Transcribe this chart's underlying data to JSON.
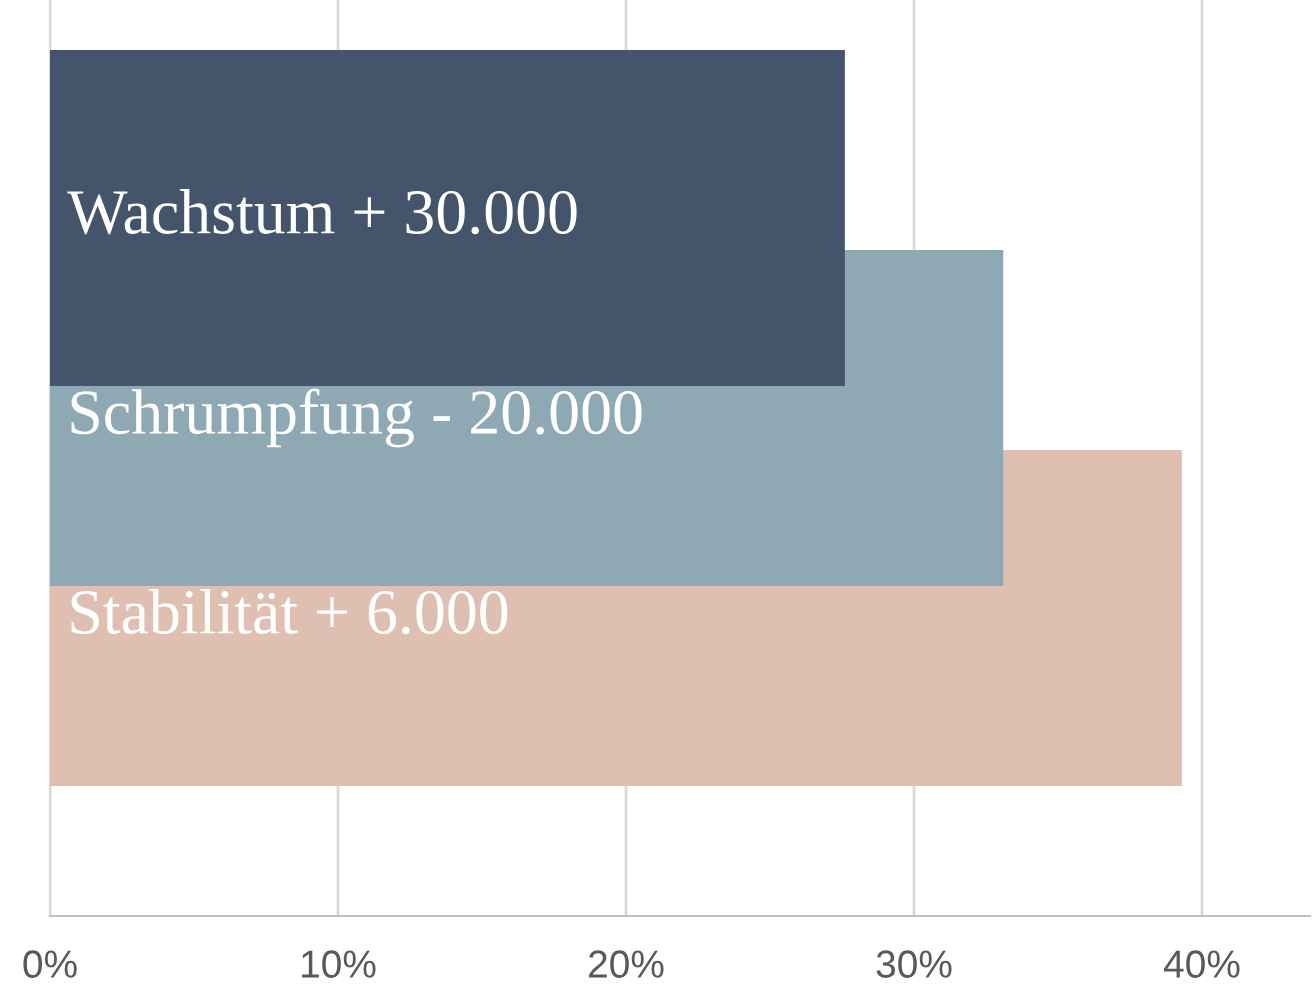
{
  "chart_data": {
    "type": "bar",
    "orientation": "horizontal",
    "categories": [
      "Wachstum + 30.000",
      "Schrumpfung - 20.000",
      "Stabilität + 6.000"
    ],
    "values": [
      27.6,
      33.1,
      39.3
    ],
    "colors": [
      "#44546a",
      "#8ea9b4",
      "#e0bfb3"
    ],
    "xlim": [
      0,
      43.75
    ],
    "xticks": [
      {
        "value": 0,
        "label": "0%"
      },
      {
        "value": 10,
        "label": "10%"
      },
      {
        "value": 20,
        "label": "20%"
      },
      {
        "value": 30,
        "label": "30%"
      },
      {
        "value": 40,
        "label": "40%"
      }
    ],
    "grid": "x"
  }
}
